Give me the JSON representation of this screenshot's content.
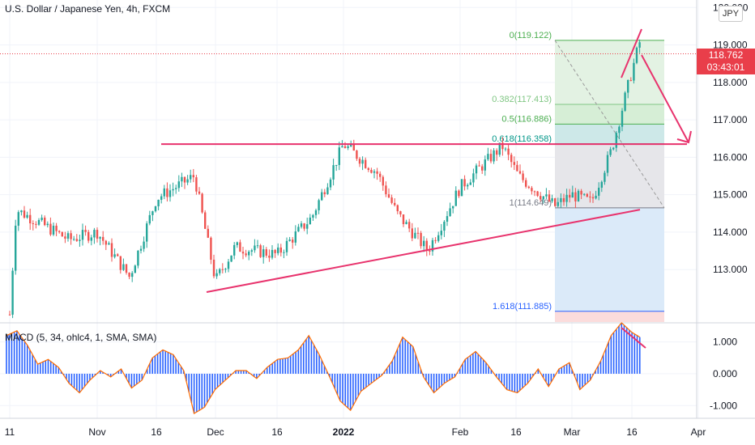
{
  "header": {
    "symbol_title": "U.S. Dollar / Japanese Yen, 4h, FXCM",
    "currency_button": "JPY"
  },
  "indicator": {
    "title": "MACD (5, 34, ohlc4, 1, SMA, SMA)"
  },
  "price_label": {
    "price": "118.762",
    "countdown": "03:43:01",
    "color": "#e93e4a"
  },
  "colors": {
    "up": "#26a69a",
    "down": "#ef5350",
    "drawing": "#e8336d",
    "macd_bar": "#2962ff",
    "macd_signal": "#ff6d00"
  },
  "chart_data": [
    {
      "type": "candlestick",
      "title": "U.S. Dollar / Japanese Yen, 4h, FXCM",
      "y_axis": {
        "side": "right",
        "ticks": [
          "113.000",
          "114.000",
          "115.000",
          "116.000",
          "117.000",
          "118.000",
          "119.000",
          "120.000"
        ],
        "range": [
          111.6,
          120.2
        ]
      },
      "x_axis": {
        "ticks": [
          "11",
          "Nov",
          "16",
          "Dec",
          "16",
          "2022",
          "Feb",
          "16",
          "Mar",
          "16",
          "Apr"
        ]
      },
      "last_price": 118.762,
      "price_path": [
        [
          "11",
          111.8
        ],
        [
          "Oct 15",
          114.6
        ],
        [
          "Oct 20",
          114.3
        ],
        [
          "Oct 26",
          113.8
        ],
        [
          "Nov",
          114.0
        ],
        [
          "Nov 9",
          112.8
        ],
        [
          "16",
          114.9
        ],
        [
          "Nov 25",
          115.5
        ],
        [
          "Dec",
          112.7
        ],
        [
          "Dec 8",
          113.6
        ],
        [
          "16",
          113.4
        ],
        [
          "Dec 24",
          114.4
        ],
        [
          "2022",
          116.35
        ],
        [
          "Jan 10",
          115.6
        ],
        [
          "Jan 18",
          114.5
        ],
        [
          "Jan 24",
          113.5
        ],
        [
          "Feb",
          115.2
        ],
        [
          "Feb 10",
          116.3
        ],
        [
          "Feb 14",
          115.5
        ],
        [
          "Feb 24",
          114.7
        ],
        [
          "Mar",
          115.0
        ],
        [
          "Mar 7",
          114.8
        ],
        [
          "Mar 10",
          116.2
        ],
        [
          "16",
          118.3
        ],
        [
          "Mar 18",
          119.1
        ],
        [
          "Mar 20",
          118.76
        ]
      ],
      "fibonacci": {
        "levels": [
          {
            "label": "0(119.122)",
            "value": 119.122,
            "color": "#4caf50"
          },
          {
            "label": "0.382(117.413)",
            "value": 117.413,
            "color": "#81c784"
          },
          {
            "label": "0.5(116.886)",
            "value": 116.886,
            "color": "#4caf50"
          },
          {
            "label": "0.618(116.358)",
            "value": 116.358,
            "color": "#009688"
          },
          {
            "label": "1(114.649)",
            "value": 114.649,
            "color": "#787b86"
          },
          {
            "label": "1.618(111.885)",
            "value": 111.885,
            "color": "#2962ff"
          }
        ]
      },
      "drawings": [
        {
          "kind": "horizontal_resistance",
          "value": 116.35
        },
        {
          "kind": "ascending_trendline",
          "from": [
            "Nov 28",
            112.4
          ],
          "to": [
            "Mar 18",
            114.6
          ]
        },
        {
          "kind": "arrow_down",
          "note": "projected move"
        }
      ]
    },
    {
      "type": "bar",
      "title": "MACD (5, 34, ohlc4, 1, SMA, SMA)",
      "y_axis": {
        "ticks": [
          "1.000",
          "0.000",
          "-1.000"
        ],
        "range": [
          -1.4,
          1.6
        ]
      },
      "series": [
        {
          "values": [
            1.2,
            1.35,
            0.9,
            0.3,
            0.45,
            0.2,
            -0.3,
            -0.6,
            -0.2,
            0.1,
            -0.1,
            0.15,
            -0.45,
            -0.2,
            0.5,
            0.75,
            0.6,
            0.1,
            -1.25,
            -1.05,
            -0.5,
            -0.2,
            0.1,
            0.1,
            -0.15,
            0.2,
            0.45,
            0.5,
            0.75,
            1.2,
            0.6,
            -0.1,
            -0.85,
            -1.15,
            -0.55,
            -0.3,
            -0.05,
            0.4,
            1.15,
            0.85,
            -0.1,
            -0.6,
            -0.3,
            -0.1,
            0.45,
            0.7,
            0.35,
            -0.1,
            -0.5,
            -0.6,
            -0.3,
            0.15,
            -0.4,
            0.15,
            0.35,
            -0.5,
            -0.2,
            0.4,
            1.2,
            1.6,
            1.3,
            1.1
          ]
        }
      ]
    }
  ]
}
